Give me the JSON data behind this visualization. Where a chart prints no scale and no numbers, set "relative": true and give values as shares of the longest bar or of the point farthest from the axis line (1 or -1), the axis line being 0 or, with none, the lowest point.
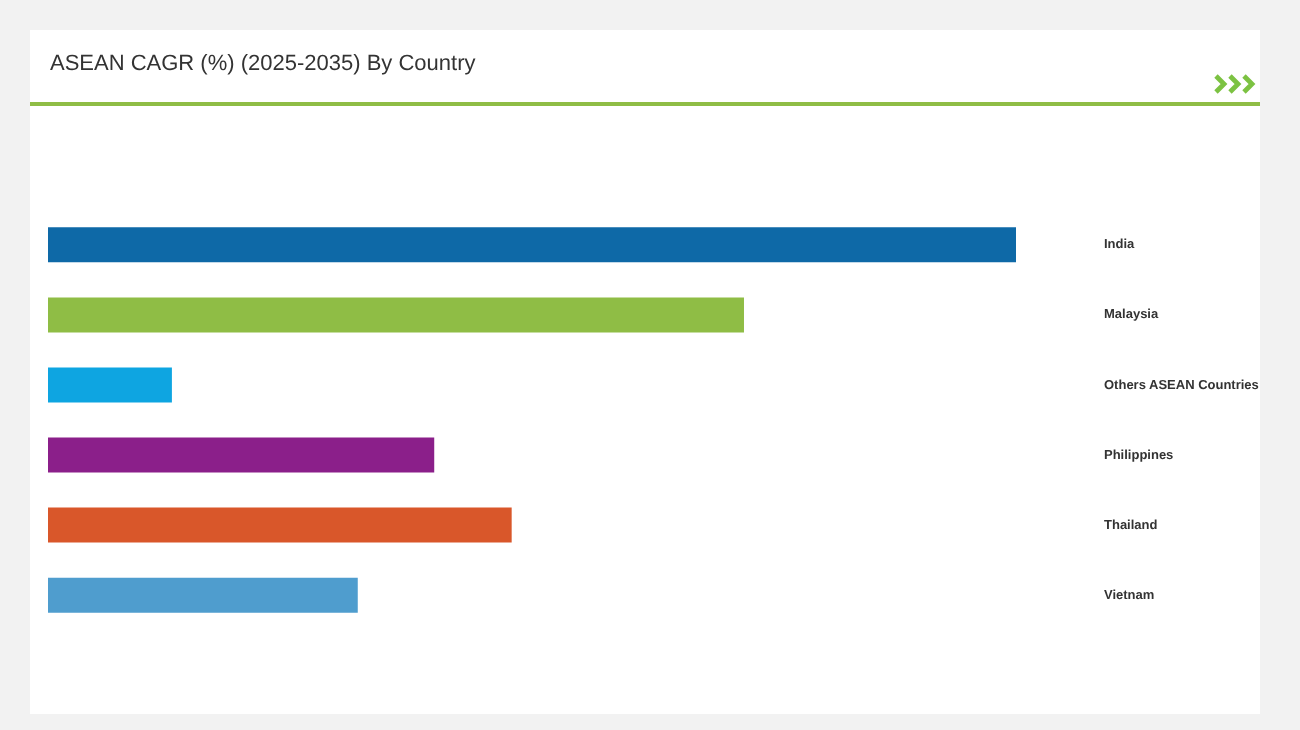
{
  "chart_data": {
    "type": "bar",
    "title": "ASEAN CAGR (%) (2025-2035) By Country",
    "orientation": "horizontal",
    "relative": true,
    "categories": [
      "India",
      "Malaysia",
      "Others ASEAN Countries",
      "Philippines",
      "Thailand",
      "Vietnam"
    ],
    "values": [
      1,
      0.719,
      0.128,
      0.399,
      0.479,
      0.32
    ],
    "colors": [
      "#0e69a7",
      "#8fbd45",
      "#0ea5e1",
      "#8b1f8a",
      "#d9572a",
      "#4f9dce"
    ],
    "legend": false
  }
}
